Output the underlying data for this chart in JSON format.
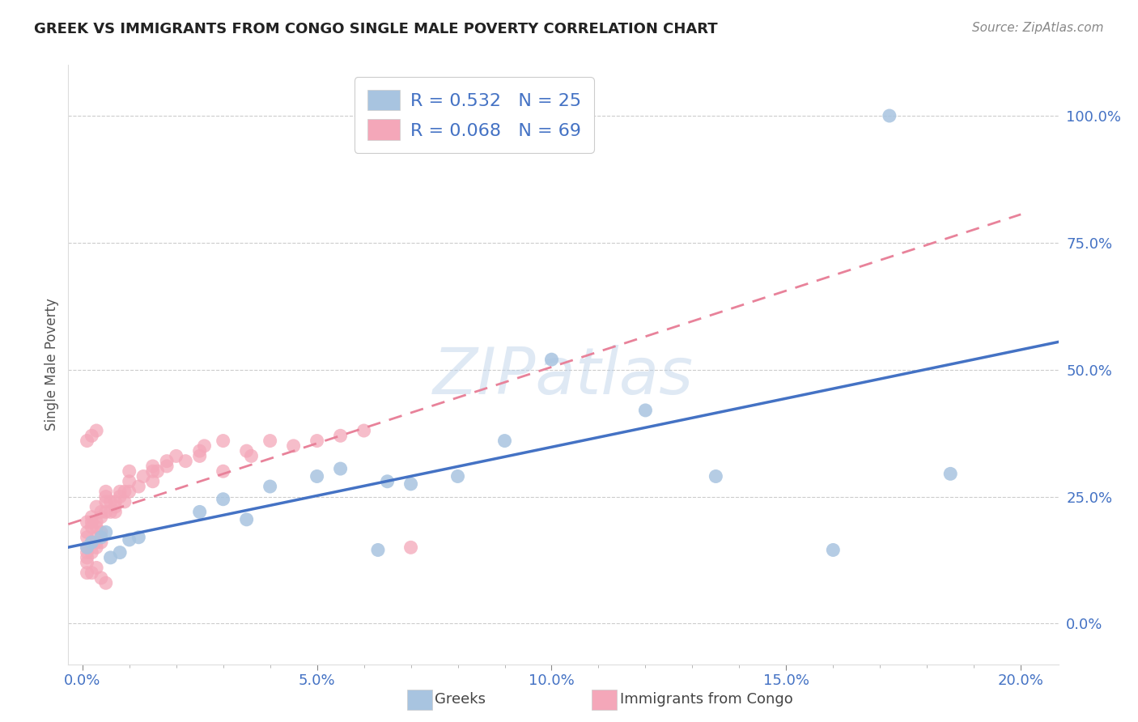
{
  "title": "GREEK VS IMMIGRANTS FROM CONGO SINGLE MALE POVERTY CORRELATION CHART",
  "source": "Source: ZipAtlas.com",
  "ylabel": "Single Male Poverty",
  "xlabel_ticks": [
    "0.0%",
    "",
    "",
    "",
    "",
    "5.0%",
    "",
    "",
    "",
    "",
    "10.0%",
    "",
    "",
    "",
    "",
    "15.0%",
    "",
    "",
    "",
    "",
    "20.0%"
  ],
  "xlabel_vals": [
    0.0,
    0.01,
    0.02,
    0.03,
    0.04,
    0.05,
    0.06,
    0.07,
    0.08,
    0.09,
    0.1,
    0.11,
    0.12,
    0.13,
    0.14,
    0.15,
    0.16,
    0.17,
    0.18,
    0.19,
    0.2
  ],
  "xlabel_major_ticks": [
    0.0,
    0.05,
    0.1,
    0.15,
    0.2
  ],
  "xlabel_major_labels": [
    "0.0%",
    "5.0%",
    "10.0%",
    "15.0%",
    "20.0%"
  ],
  "xlabel_minor_ticks": [
    0.01,
    0.02,
    0.03,
    0.04,
    0.06,
    0.07,
    0.08,
    0.09,
    0.11,
    0.12,
    0.13,
    0.14,
    0.16,
    0.17,
    0.18,
    0.19
  ],
  "ylabel_ticks": [
    0.0,
    0.25,
    0.5,
    0.75,
    1.0
  ],
  "ylabel_labels": [
    "0.0%",
    "25.0%",
    "50.0%",
    "75.0%",
    "100.0%"
  ],
  "xlim": [
    -0.003,
    0.208
  ],
  "ylim": [
    -0.08,
    1.1
  ],
  "greek_color": "#a8c4e0",
  "congo_color": "#f4a7b9",
  "greek_line_color": "#4472C4",
  "congo_line_color": "#e8829a",
  "greek_R": "0.532",
  "greek_N": "25",
  "congo_R": "0.068",
  "congo_N": "69",
  "legend_label_greek": "Greeks",
  "legend_label_congo": "Immigrants from Congo",
  "watermark": "ZIPatlas",
  "greek_x": [
    0.001,
    0.002,
    0.004,
    0.005,
    0.006,
    0.008,
    0.01,
    0.012,
    0.025,
    0.03,
    0.035,
    0.04,
    0.05,
    0.055,
    0.063,
    0.065,
    0.07,
    0.08,
    0.09,
    0.1,
    0.12,
    0.135,
    0.16,
    0.185,
    0.172
  ],
  "greek_y": [
    0.15,
    0.16,
    0.17,
    0.18,
    0.13,
    0.14,
    0.165,
    0.17,
    0.22,
    0.245,
    0.205,
    0.27,
    0.29,
    0.305,
    0.145,
    0.28,
    0.275,
    0.29,
    0.36,
    0.52,
    0.42,
    0.29,
    0.145,
    0.295,
    1.0
  ],
  "congo_x": [
    0.001,
    0.001,
    0.001,
    0.001,
    0.002,
    0.002,
    0.002,
    0.003,
    0.003,
    0.003,
    0.003,
    0.004,
    0.004,
    0.004,
    0.005,
    0.005,
    0.005,
    0.005,
    0.006,
    0.006,
    0.007,
    0.007,
    0.007,
    0.008,
    0.008,
    0.009,
    0.009,
    0.01,
    0.01,
    0.01,
    0.012,
    0.013,
    0.015,
    0.015,
    0.015,
    0.016,
    0.018,
    0.018,
    0.02,
    0.022,
    0.001,
    0.001,
    0.002,
    0.002,
    0.003,
    0.003,
    0.004,
    0.005,
    0.001,
    0.001,
    0.001,
    0.002,
    0.002,
    0.003,
    0.003,
    0.004,
    0.025,
    0.025,
    0.026,
    0.03,
    0.03,
    0.035,
    0.036,
    0.04,
    0.045,
    0.05,
    0.055,
    0.06,
    0.07
  ],
  "congo_y": [
    0.14,
    0.13,
    0.17,
    0.12,
    0.14,
    0.16,
    0.2,
    0.15,
    0.17,
    0.16,
    0.19,
    0.16,
    0.18,
    0.21,
    0.22,
    0.25,
    0.24,
    0.26,
    0.22,
    0.24,
    0.23,
    0.24,
    0.22,
    0.26,
    0.25,
    0.26,
    0.24,
    0.26,
    0.28,
    0.3,
    0.27,
    0.29,
    0.28,
    0.3,
    0.31,
    0.3,
    0.32,
    0.31,
    0.33,
    0.32,
    0.36,
    0.1,
    0.37,
    0.1,
    0.38,
    0.11,
    0.09,
    0.08,
    0.18,
    0.2,
    0.15,
    0.19,
    0.21,
    0.2,
    0.23,
    0.22,
    0.34,
    0.33,
    0.35,
    0.36,
    0.3,
    0.34,
    0.33,
    0.36,
    0.35,
    0.36,
    0.37,
    0.38,
    0.15
  ]
}
